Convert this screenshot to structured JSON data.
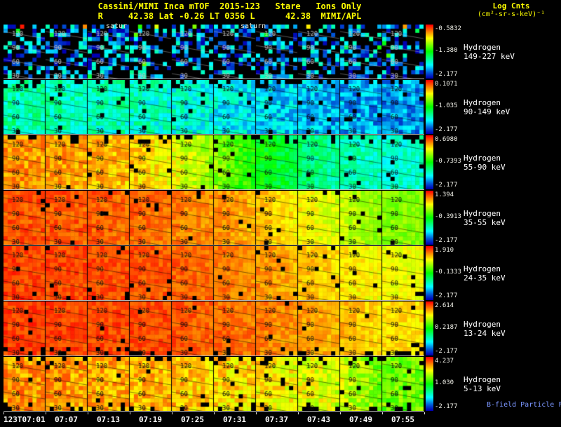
{
  "chart_data": {
    "type": "heatmap",
    "title": "Cassini/MIMI Inca mTOF  2015-123   Stare   Ions Only",
    "subtitle": "R     42.38 Lat -0.26 LT 0356 L      42.38  MIMI/APL",
    "colorbar_units_line1": "Log Cnts",
    "colorbar_units_line2": "(cm²-sr-s-keV)⁻¹",
    "colormap": "rainbow (red=high, blue=low, black=below range)",
    "panels_per_row": 10,
    "x_tick_labels": [
      "123T07:01",
      "07:07",
      "07:13",
      "07:19",
      "07:25",
      "07:31",
      "07:37",
      "07:43",
      "07:49",
      "07:55"
    ],
    "contour_labels": [
      "120",
      "90",
      "60",
      "30"
    ],
    "rows": [
      {
        "species": "Hydrogen",
        "energy": "149-227 keV",
        "scale": {
          "max": "-0.5832",
          "mid": "-1.380",
          "min": "-2.177"
        },
        "render": {
          "style": "sparse",
          "base": 0.1,
          "noise": 0.18,
          "fill_frac": 0.45,
          "hot_top_frac": 0.1
        }
      },
      {
        "species": "Hydrogen",
        "energy": "90-149 keV",
        "scale": {
          "max": "0.1071",
          "mid": "-1.035",
          "min": "-2.177"
        },
        "render": {
          "profile": [
            0.34,
            0.33,
            0.32,
            0.31,
            0.29,
            0.26,
            0.23,
            0.2,
            0.18,
            0.16
          ],
          "noise": 0.09,
          "black": 0.03,
          "black_top": 0.35
        }
      },
      {
        "species": "Hydrogen",
        "energy": "55-90 keV",
        "scale": {
          "max": "0.6980",
          "mid": "-0.7393",
          "min": "-2.177"
        },
        "render": {
          "profile": [
            0.86,
            0.85,
            0.83,
            0.8,
            0.74,
            0.64,
            0.5,
            0.4,
            0.34,
            0.3
          ],
          "noise": 0.07,
          "black": 0.02,
          "black_top": 0.3
        }
      },
      {
        "species": "Hydrogen",
        "energy": "35-55 keV",
        "scale": {
          "max": "1.394",
          "mid": "-0.3913",
          "min": "-2.177"
        },
        "render": {
          "profile": [
            0.92,
            0.92,
            0.91,
            0.9,
            0.88,
            0.86,
            0.82,
            0.76,
            0.7,
            0.63
          ],
          "noise": 0.05,
          "black": 0.02,
          "black_top": 0.1
        }
      },
      {
        "species": "Hydrogen",
        "energy": "24-35 keV",
        "scale": {
          "max": "1.910",
          "mid": "-0.1333",
          "min": "-2.177"
        },
        "render": {
          "profile": [
            0.94,
            0.93,
            0.93,
            0.92,
            0.91,
            0.89,
            0.86,
            0.82,
            0.78,
            0.74
          ],
          "noise": 0.045,
          "black": 0.02,
          "black_top": 0.06,
          "black_bottom": 0.06
        }
      },
      {
        "species": "Hydrogen",
        "energy": "13-24 keV",
        "scale": {
          "max": "2.614",
          "mid": "0.2187",
          "min": "-2.177"
        },
        "render": {
          "profile": [
            0.94,
            0.94,
            0.93,
            0.93,
            0.92,
            0.9,
            0.88,
            0.85,
            0.82,
            0.78
          ],
          "noise": 0.045,
          "black": 0.02,
          "black_bottom": 0.28
        }
      },
      {
        "species": "Hydrogen",
        "energy": "5-13 keV",
        "scale": {
          "max": "4.237",
          "mid": "1.030",
          "min": "-2.177"
        },
        "render": {
          "profile": [
            0.86,
            0.85,
            0.84,
            0.83,
            0.81,
            0.79,
            0.77,
            0.74,
            0.7,
            0.61
          ],
          "noise": 0.08,
          "black": 0.03,
          "black_top": 0.22,
          "black_bottom": 0.22
        }
      }
    ]
  },
  "overlays": {
    "saturn_label_1": "satur",
    "saturn_label_2": "saturn",
    "bfield_note": "B-field Particle Flow"
  }
}
